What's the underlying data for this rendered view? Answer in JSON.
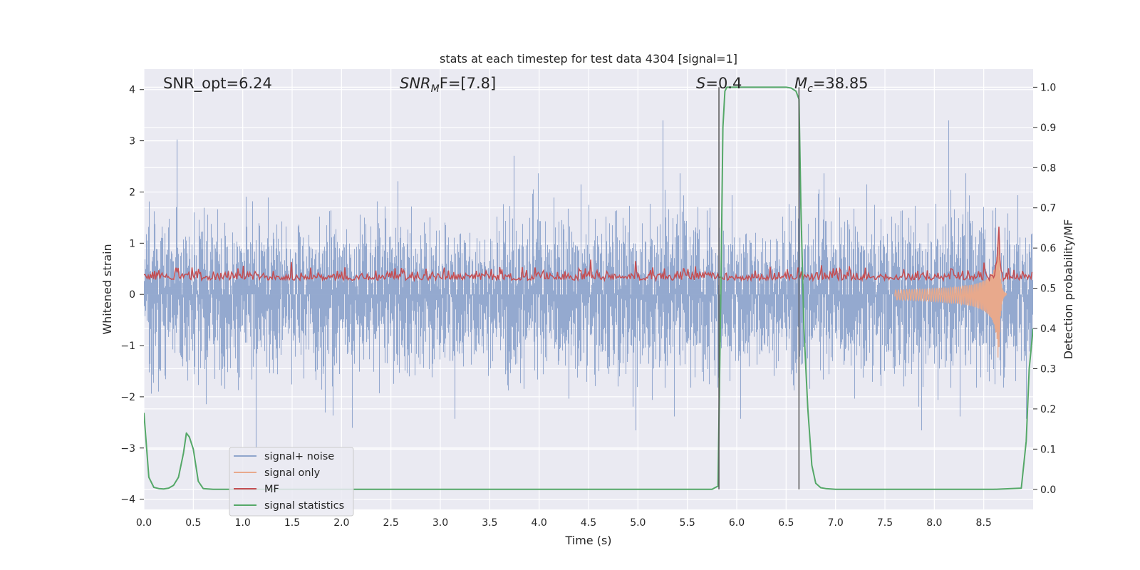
{
  "chart_data": {
    "type": "line",
    "title": "stats at each timestep for test data 4304 [signal=1]",
    "xlabel": "Time (s)",
    "ylabel": "Whitened strain",
    "y2label": "Detection probability/MF",
    "xlim": [
      0.0,
      9.0
    ],
    "ylim": [
      -4.2,
      4.4
    ],
    "y2lim": [
      -0.05,
      1.045
    ],
    "xticks": [
      "0.0",
      "0.5",
      "1.0",
      "1.5",
      "2.0",
      "2.5",
      "3.0",
      "3.5",
      "4.0",
      "4.5",
      "5.0",
      "5.5",
      "6.0",
      "6.5",
      "7.0",
      "7.5",
      "8.0",
      "8.5"
    ],
    "yticks": [
      "−4",
      "−3",
      "−2",
      "−1",
      "0",
      "1",
      "2",
      "3",
      "4"
    ],
    "y2ticks": [
      "0.0",
      "0.1",
      "0.2",
      "0.3",
      "0.4",
      "0.5",
      "0.6",
      "0.7",
      "0.8",
      "0.9",
      "1.0"
    ],
    "grid": true,
    "legend_position": "lower-left",
    "annotations": {
      "snr_opt": "SNR_opt=6.24",
      "snr_mf_base": "SNR",
      "snr_mf_sub": "M",
      "snr_mf_rest": "F=[7.8]",
      "s_var": "S",
      "s_rest": "=0.4",
      "mc_var": "M",
      "mc_sub": "c",
      "mc_rest": "=38.85"
    },
    "vlines_x": [
      5.82,
      6.63
    ],
    "series": [
      {
        "name": "signal+ noise",
        "axis": "left",
        "color": "#8fa5cc",
        "description_values": "dense noise, mostly within ±1.5, peaks reaching about ±3.5 to 4"
      },
      {
        "name": "signal only",
        "axis": "left",
        "color": "#e8a98c",
        "chirp": {
          "start": 7.6,
          "merger": 8.65,
          "peak_amplitude": 1.4
        }
      },
      {
        "name": "MF",
        "axis": "right",
        "color": "#c44e52",
        "baseline": 0.5,
        "typical_range": [
          0.5,
          0.56
        ]
      },
      {
        "name": "signal statistics",
        "axis": "right",
        "color": "#55a868",
        "x": [
          0.0,
          0.05,
          0.1,
          0.15,
          0.2,
          0.25,
          0.3,
          0.35,
          0.4,
          0.43,
          0.46,
          0.5,
          0.55,
          0.6,
          0.7,
          1.0,
          2.0,
          3.0,
          4.0,
          5.0,
          5.5,
          5.75,
          5.81,
          5.84,
          5.86,
          5.88,
          5.9,
          6.0,
          6.2,
          6.4,
          6.5,
          6.55,
          6.6,
          6.63,
          6.65,
          6.68,
          6.72,
          6.76,
          6.8,
          6.85,
          6.9,
          7.0,
          8.0,
          8.6,
          8.88,
          8.93,
          8.96,
          9.0
        ],
        "y": [
          0.19,
          0.03,
          0.005,
          0.002,
          0.001,
          0.003,
          0.01,
          0.03,
          0.09,
          0.14,
          0.13,
          0.1,
          0.02,
          0.002,
          0.0,
          0.0,
          0.0,
          0.0,
          0.0,
          0.0,
          0.0,
          0.0,
          0.008,
          0.5,
          0.9,
          0.99,
          1.0,
          1.0,
          1.0,
          1.0,
          1.0,
          0.998,
          0.99,
          0.97,
          0.7,
          0.4,
          0.2,
          0.06,
          0.015,
          0.004,
          0.002,
          0.0,
          0.0,
          0.0,
          0.003,
          0.12,
          0.3,
          0.4
        ]
      }
    ]
  }
}
